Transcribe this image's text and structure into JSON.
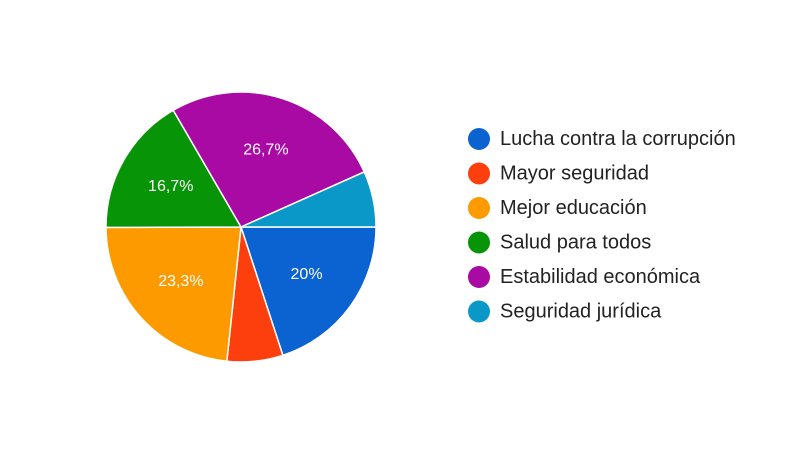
{
  "chart_data": {
    "type": "pie",
    "categories": [
      "Lucha contra la corrupción",
      "Mayor seguridad",
      "Mejor educación",
      "Salud para todos",
      "Estabilidad económica",
      "Seguridad jurídica"
    ],
    "values": [
      20,
      6.7,
      23.3,
      16.7,
      26.7,
      6.7
    ],
    "data_labels": [
      "20%",
      "",
      "23,3%",
      "16,7%",
      "26,7%",
      ""
    ],
    "colors": [
      "#0b63d1",
      "#fc3f0c",
      "#fc9a00",
      "#079407",
      "#aa0aa4",
      "#0a98c9"
    ],
    "title": "",
    "legend_position": "right",
    "start": "3 o'clock",
    "direction": "clockwise"
  }
}
